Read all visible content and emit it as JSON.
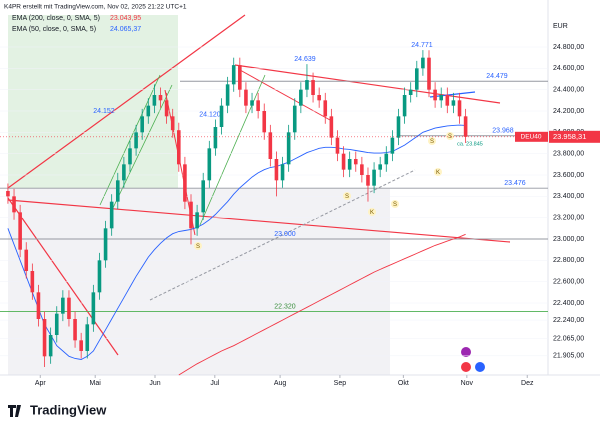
{
  "header": "K4PR erstellt mit TradingView.com, Nov 02, 2025 21:22 UTC+1",
  "currency": "EUR",
  "brand": "TradingView",
  "chart_data": {
    "type": "candlestick",
    "legend": [
      {
        "name": "EMA (200, close, 0, SMA, 5)",
        "value_label": "23.043,95",
        "color": "#f23645"
      },
      {
        "name": "EMA (50, close, 0, SMA, 5)",
        "value_label": "24.065,37",
        "color": "#2962ff"
      }
    ],
    "symbol": "DEU40",
    "last_price_label": "23.958,31",
    "xlim": [
      -1.3,
      88.5
    ],
    "xticks": [
      {
        "value": 5.3,
        "label": "Apr"
      },
      {
        "value": 14.3,
        "label": "Mai"
      },
      {
        "value": 24.1,
        "label": "Jun"
      },
      {
        "value": 33.9,
        "label": "Jul"
      },
      {
        "value": 44.6,
        "label": "Aug"
      },
      {
        "value": 54.4,
        "label": "Sep"
      },
      {
        "value": 64.8,
        "label": "Okt"
      },
      {
        "value": 75.2,
        "label": "Nov"
      },
      {
        "value": 85.1,
        "label": "Dez"
      }
    ],
    "ylim": [
      21725,
      25100
    ],
    "yticks": [
      {
        "value": 24800,
        "label": "24.800,00"
      },
      {
        "value": 24600,
        "label": "24.600,00"
      },
      {
        "value": 24400,
        "label": "24.400,00"
      },
      {
        "value": 24200,
        "label": "24.200,00"
      },
      {
        "value": 24000,
        "label": "24.000,00"
      },
      {
        "value": 23800,
        "label": "23.800,00"
      },
      {
        "value": 23600,
        "label": "23.600,00"
      },
      {
        "value": 23400,
        "label": "23.400,00"
      },
      {
        "value": 23200,
        "label": "23.200,00"
      },
      {
        "value": 23000,
        "label": "23.000,00"
      },
      {
        "value": 22800,
        "label": "22.800,00"
      },
      {
        "value": 22600,
        "label": "22.600,00"
      },
      {
        "value": 22400,
        "label": "22.400,00"
      },
      {
        "value": 22240,
        "label": "22.240,00"
      },
      {
        "value": 22065,
        "label": "22.065,00"
      },
      {
        "value": 21905,
        "label": "21.905,00"
      }
    ],
    "open": [
      23450,
      23400,
      23250,
      22900,
      22700,
      22500,
      22250,
      21900,
      22100,
      22300,
      22450,
      22250,
      22050,
      21950,
      22200,
      22500,
      22800,
      23100,
      23350,
      23550,
      23700,
      23850,
      24000,
      24150,
      24250,
      24350,
      24300,
      24150,
      24020,
      23700,
      23350,
      23100,
      23250,
      23550,
      23850,
      24050,
      24250,
      24450,
      24630,
      24400,
      24250,
      24300,
      24200,
      24000,
      23750,
      23550,
      23700,
      24000,
      24250,
      24400,
      24490,
      24350,
      24300,
      24150,
      23950,
      23800,
      23650,
      23750,
      23700,
      23600,
      23500,
      23650,
      23700,
      23800,
      23950,
      24150,
      24350,
      24400,
      24600,
      24700,
      24400,
      24300,
      24350,
      24250,
      24300,
      24150
    ],
    "high": [
      23520,
      23470,
      23320,
      22970,
      22770,
      22570,
      22320,
      22170,
      22370,
      22520,
      22520,
      22320,
      22120,
      22270,
      22570,
      22870,
      23170,
      23420,
      23620,
      23770,
      23920,
      24070,
      24220,
      24320,
      24450,
      24420,
      24370,
      24220,
      24090,
      23770,
      23420,
      23320,
      23620,
      23920,
      24120,
      24320,
      24520,
      24700,
      24700,
      24470,
      24370,
      24370,
      24270,
      24070,
      23820,
      23770,
      24070,
      24320,
      24470,
      24640,
      24560,
      24420,
      24370,
      24220,
      24020,
      23870,
      23820,
      23820,
      23770,
      23670,
      23720,
      23770,
      23870,
      24020,
      24220,
      24420,
      24470,
      24670,
      24771,
      24770,
      24470,
      24420,
      24420,
      24370,
      24370,
      24220
    ],
    "low": [
      23330,
      23180,
      22830,
      22630,
      22430,
      22180,
      21800,
      21830,
      22030,
      22230,
      22180,
      21980,
      21880,
      21880,
      22130,
      22430,
      22730,
      23030,
      23280,
      23480,
      23630,
      23780,
      23930,
      24080,
      24180,
      24230,
      24080,
      23950,
      23630,
      23280,
      22950,
      23030,
      23180,
      23480,
      23780,
      23980,
      24180,
      24380,
      24330,
      24180,
      24180,
      24130,
      23930,
      23680,
      23400,
      23480,
      23630,
      23930,
      24180,
      24330,
      24280,
      24230,
      24080,
      23880,
      23730,
      23580,
      23580,
      23630,
      23530,
      23350,
      23430,
      23580,
      23630,
      23730,
      23880,
      24080,
      24280,
      24330,
      24530,
      24330,
      24230,
      24230,
      24180,
      24180,
      24080,
      23900
    ],
    "close": [
      23400,
      23250,
      22900,
      22700,
      22500,
      22250,
      21900,
      22100,
      22300,
      22450,
      22250,
      22050,
      21950,
      22200,
      22500,
      22800,
      23100,
      23350,
      23550,
      23700,
      23850,
      24000,
      24150,
      24250,
      24350,
      24300,
      24150,
      24020,
      23700,
      23350,
      23100,
      23250,
      23550,
      23850,
      24050,
      24250,
      24450,
      24630,
      24400,
      24250,
      24300,
      24200,
      24000,
      23750,
      23550,
      23700,
      24000,
      24250,
      24400,
      24490,
      24350,
      24300,
      24150,
      23950,
      23800,
      23650,
      23750,
      23700,
      23600,
      23500,
      23650,
      23700,
      23800,
      23950,
      24150,
      24350,
      24400,
      24600,
      24700,
      24400,
      24300,
      24350,
      24250,
      24300,
      24150,
      23958
    ],
    "up_color": "#089981",
    "down_color": "#f23645",
    "series": [
      {
        "name": "EMA 200",
        "color": "#f23645",
        "values": [
          null,
          null,
          null,
          null,
          null,
          null,
          null,
          null,
          null,
          null,
          null,
          null,
          null,
          null,
          null,
          null,
          null,
          null,
          null,
          null,
          null,
          null,
          null,
          null,
          null,
          null,
          null,
          null,
          21725,
          21760,
          21795,
          21830,
          21860,
          21890,
          21920,
          21950,
          21975,
          22000,
          22030,
          22060,
          22090,
          22120,
          22150,
          22180,
          22210,
          22240,
          22270,
          22300,
          22330,
          22360,
          22390,
          22420,
          22450,
          22480,
          22510,
          22540,
          22570,
          22600,
          22630,
          22660,
          22690,
          22715,
          22740,
          22765,
          22790,
          22815,
          22840,
          22865,
          22890,
          22915,
          22940,
          22960,
          22980,
          23000,
          23020,
          23044
        ]
      },
      {
        "name": "EMA 50",
        "color": "#2962ff",
        "values": [
          23100,
          22950,
          22800,
          22650,
          22500,
          22350,
          22200,
          22100,
          22000,
          21950,
          21900,
          21880,
          21870,
          21900,
          21950,
          22050,
          22150,
          22250,
          22350,
          22450,
          22550,
          22650,
          22740,
          22830,
          22900,
          22960,
          23010,
          23050,
          23070,
          23080,
          23090,
          23110,
          23140,
          23180,
          23230,
          23290,
          23350,
          23420,
          23480,
          23530,
          23580,
          23620,
          23650,
          23670,
          23680,
          23700,
          23720,
          23750,
          23780,
          23810,
          23830,
          23850,
          23860,
          23860,
          23855,
          23845,
          23840,
          23830,
          23820,
          23810,
          23805,
          23805,
          23810,
          23820,
          23850,
          23880,
          23920,
          23960,
          24000,
          24020,
          24040,
          24050,
          24060,
          24065,
          24068,
          24065
        ]
      }
    ],
    "levels": [
      {
        "value": 24639,
        "label": "24.639"
      },
      {
        "value": 24771,
        "label": "24.771"
      },
      {
        "value": 24479,
        "label": "24.479",
        "line": true
      },
      {
        "value": 24152,
        "label": "24.152"
      },
      {
        "value": 24120,
        "label": "24.120"
      },
      {
        "value": 23968,
        "label": "23.968",
        "line": true
      },
      {
        "value": 23845,
        "label": "ca. 23.845"
      },
      {
        "value": 23476,
        "label": "23.476",
        "line": true
      },
      {
        "value": 23000,
        "label": "23.000",
        "line": true
      },
      {
        "value": 22320,
        "label": "22.320",
        "line": true
      }
    ],
    "signals": [
      "S",
      "S",
      "K",
      "S",
      "S",
      "S",
      "K"
    ]
  }
}
